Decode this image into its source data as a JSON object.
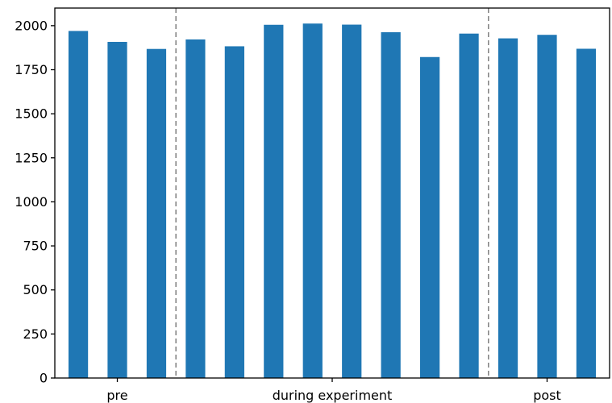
{
  "chart_data": {
    "type": "bar",
    "title": "",
    "xlabel": "",
    "ylabel": "",
    "ylim": [
      0,
      2100
    ],
    "yticks": [
      0,
      250,
      500,
      750,
      1000,
      1250,
      1500,
      1750,
      2000
    ],
    "values": [
      1970,
      1908,
      1868,
      1922,
      1883,
      2005,
      2012,
      2006,
      1963,
      1822,
      1955,
      1928,
      1948,
      1869
    ],
    "groups": [
      {
        "label": "pre",
        "start": 0,
        "end": 2
      },
      {
        "label": "during experiment",
        "start": 3,
        "end": 10
      },
      {
        "label": "post",
        "start": 11,
        "end": 13
      }
    ],
    "dividers_after_bar": [
      2,
      10
    ],
    "grid": false,
    "legend": "none",
    "bar_color": "#1f77b4",
    "divider_color": "#808080"
  }
}
